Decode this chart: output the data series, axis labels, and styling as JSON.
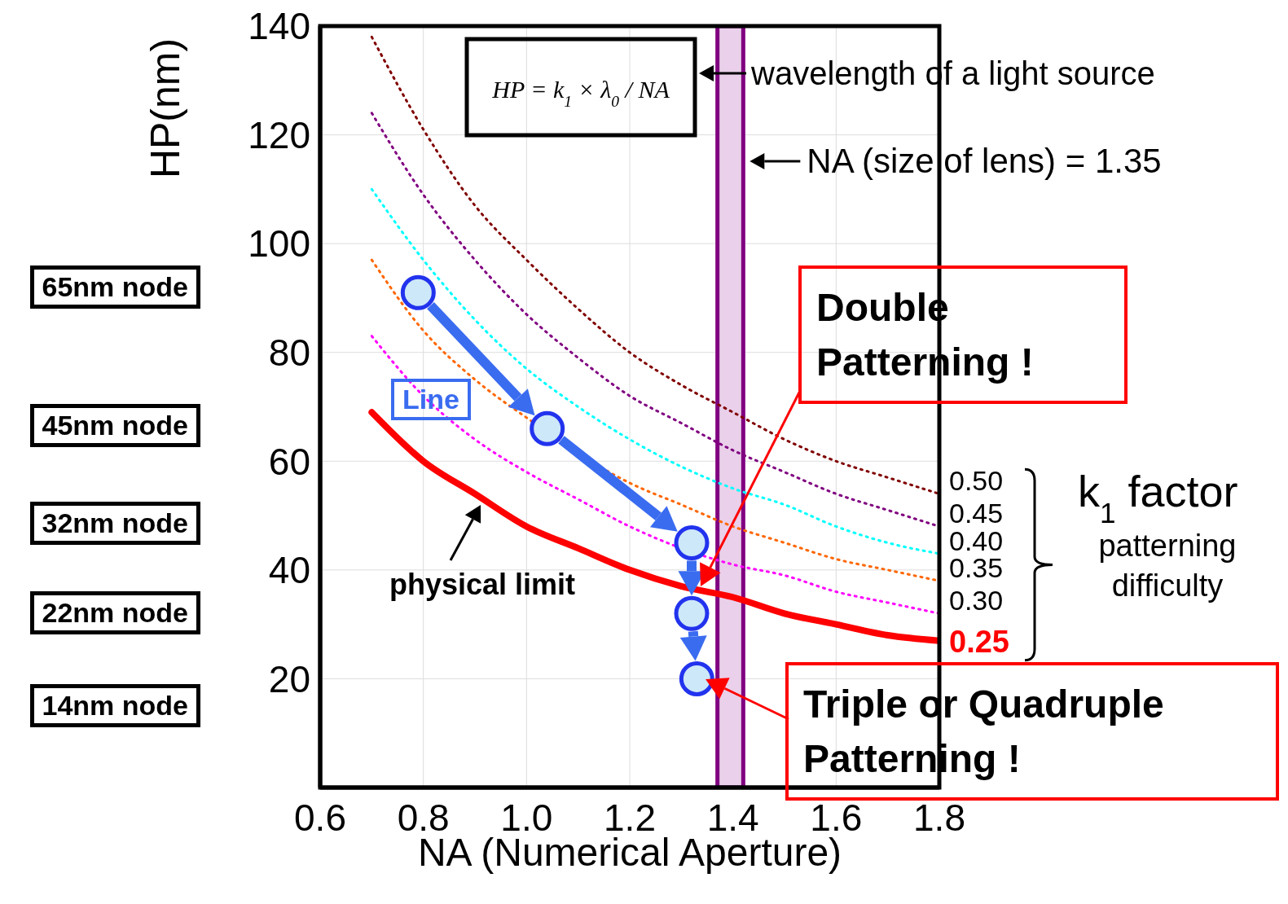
{
  "chart_data": {
    "type": "line",
    "xlabel": "NA (Numerical Aperture)",
    "ylabel": "HP(nm)",
    "xlim": [
      0.6,
      1.8
    ],
    "ylim": [
      0,
      140
    ],
    "xticks": [
      0.6,
      0.8,
      {
        "value": 1,
        "label": "1.0"
      },
      1.2,
      1.4,
      1.6,
      1.8
    ],
    "yticks": [
      20,
      40,
      60,
      80,
      100,
      120,
      140
    ],
    "grid": true,
    "marker": "none",
    "x": [
      0.7,
      0.8,
      0.9,
      1.0,
      1.1,
      1.2,
      1.3,
      1.4,
      1.5,
      1.6,
      1.7,
      1.8
    ],
    "series": [
      {
        "name": "0.50",
        "color": "#800000",
        "line_style": "dotted",
        "values": [
          138,
          121,
          107,
          97,
          88,
          80,
          74,
          69,
          64,
          60,
          57,
          54
        ]
      },
      {
        "name": "0.45",
        "color": "#800080",
        "line_style": "dotted",
        "values": [
          124,
          109,
          97,
          87,
          79,
          72,
          67,
          62,
          58,
          54,
          51,
          48
        ]
      },
      {
        "name": "0.40",
        "color": "#00ffff",
        "line_style": "dotted",
        "values": [
          110,
          97,
          86,
          77,
          70,
          64,
          59,
          55,
          52,
          48,
          45,
          43
        ]
      },
      {
        "name": "0.35",
        "color": "#ff6600",
        "line_style": "dotted",
        "values": [
          97,
          84,
          75,
          68,
          null,
          56,
          52,
          48,
          45,
          42,
          40,
          38
        ]
      },
      {
        "name": "0.30",
        "color": "#ff00ff",
        "line_style": "dotted",
        "values": [
          83,
          72,
          64,
          58,
          53,
          48,
          null,
          41,
          39,
          36,
          34,
          32
        ]
      },
      {
        "name": "0.25",
        "color": "#ff0000",
        "line_style": "solid",
        "values": [
          69,
          60,
          54,
          48,
          44,
          40,
          37,
          35,
          32,
          30,
          28,
          27
        ]
      },
      {
        "type": "scatter",
        "color": "#2233ee",
        "marker": "circle",
        "x": [
          0.79,
          1.04,
          1.32,
          1.32,
          1.33
        ],
        "values": [
          91,
          66,
          45,
          32,
          20
        ]
      }
    ],
    "bands": [
      {
        "axis": "x",
        "from": 1.37,
        "to": 1.42,
        "label": "NA (size of lens) = 1.35",
        "color": "#800080"
      }
    ],
    "annotations": [
      "HP = k$_{1}$ × λ$_{0}$ / NA",
      "wavelength of a light source",
      "Double Patterning !",
      "Triple or Quadruple Patterning !",
      "physical limit",
      "Line",
      "k$_{1}$ factor",
      "patterning difficulty",
      "65nm node",
      "45nm node",
      "32nm node",
      "22nm node",
      "14nm node"
    ]
  }
}
